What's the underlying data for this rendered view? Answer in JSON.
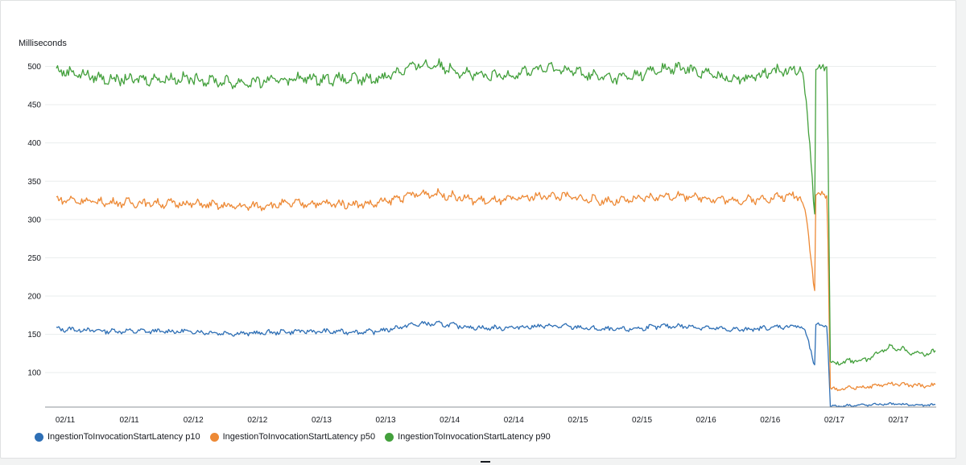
{
  "chart_data": {
    "type": "line",
    "ylabel": "Milliseconds",
    "ylim": [
      55,
      510
    ],
    "yticks": [
      100,
      150,
      200,
      250,
      300,
      350,
      400,
      450,
      500
    ],
    "xticks": [
      "02/11",
      "02/11",
      "02/12",
      "02/12",
      "02/13",
      "02/13",
      "02/14",
      "02/14",
      "02/15",
      "02/15",
      "02/16",
      "02/16",
      "02/17",
      "02/17"
    ],
    "x": [
      "02/10 18:00",
      "02/11 06:00",
      "02/11 18:00",
      "02/12 06:00",
      "02/12 18:00",
      "02/13 06:00",
      "02/13 18:00",
      "02/14 06:00",
      "02/14 18:00",
      "02/15 06:00",
      "02/15 18:00",
      "02/16 06:00",
      "02/16 18:00",
      "02/17 00:00",
      "02/17 06:00",
      "02/17 12:00",
      "02/17 18:00"
    ],
    "series": [
      {
        "name": "IngestionToInvocationStartLatency p10",
        "color": "#2e6fb5",
        "values": [
          158,
          153,
          155,
          150,
          155,
          152,
          165,
          157,
          162,
          155,
          162,
          155,
          162,
          56,
          57,
          59,
          58
        ]
      },
      {
        "name": "IngestionToInvocationStartLatency p50",
        "color": "#ed8935",
        "values": [
          328,
          320,
          323,
          315,
          323,
          318,
          336,
          322,
          333,
          322,
          333,
          323,
          333,
          78,
          80,
          85,
          84
        ]
      },
      {
        "name": "IngestionToInvocationStartLatency p90",
        "color": "#43a03c",
        "values": [
          497,
          480,
          487,
          476,
          487,
          480,
          505,
          484,
          500,
          482,
          500,
          482,
          500,
          112,
          115,
          133,
          126
        ]
      }
    ],
    "legend": "bottom-left",
    "grid": true
  }
}
